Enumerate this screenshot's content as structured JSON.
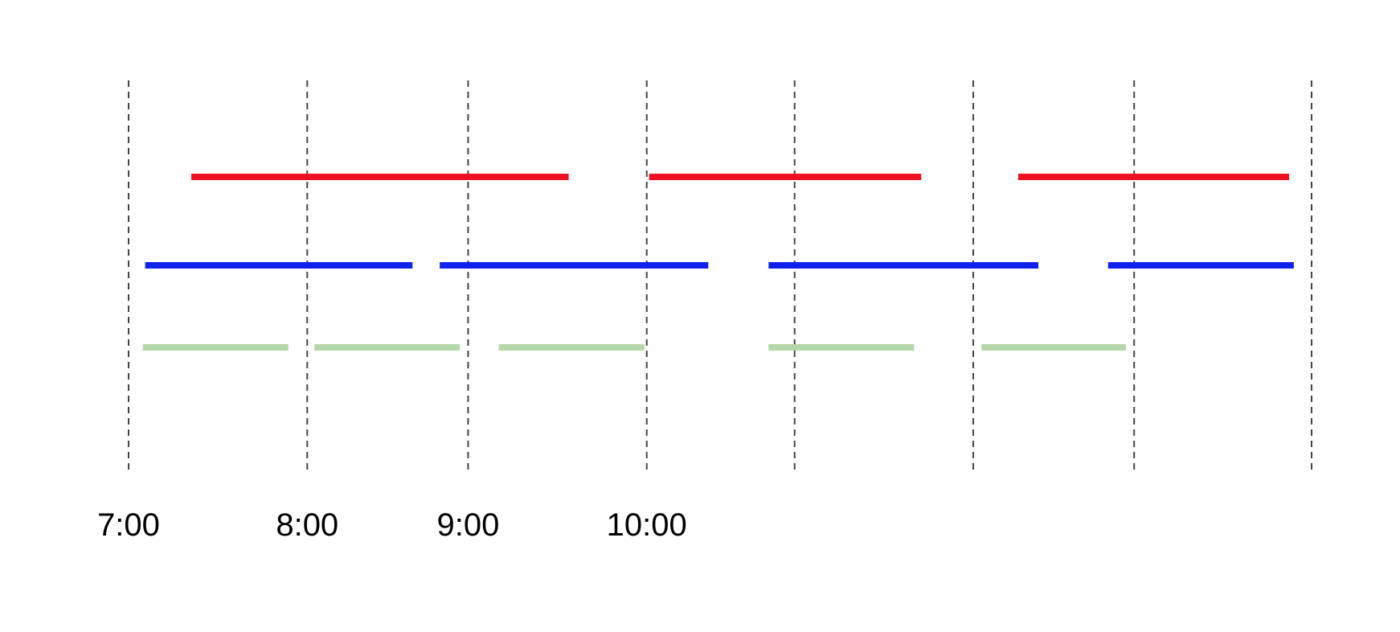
{
  "chart_data": {
    "type": "timeline",
    "title": "",
    "xlabel": "",
    "ylabel": "",
    "grid": true,
    "legend": "none",
    "xlim": [
      0,
      100
    ],
    "gridlines": [
      0,
      15.1,
      28.7,
      43.8,
      56.3,
      71.4,
      85,
      100
    ],
    "tick_labels": [
      {
        "value": 0,
        "label": "7:00"
      },
      {
        "value": 15.1,
        "label": "8:00"
      },
      {
        "value": 28.7,
        "label": "9:00"
      },
      {
        "value": 43.8,
        "label": "10:00"
      }
    ],
    "series": [
      {
        "color": "#ee1122",
        "segments": [
          [
            5.3,
            37.2
          ],
          [
            44.0,
            67.0
          ],
          [
            75.2,
            98.1
          ]
        ]
      },
      {
        "color": "#1122ee",
        "segments": [
          [
            1.4,
            24.0
          ],
          [
            26.3,
            49.0
          ],
          [
            54.1,
            76.9
          ],
          [
            82.8,
            98.5
          ]
        ]
      },
      {
        "color": "#b4d7a8",
        "segments": [
          [
            1.2,
            13.5
          ],
          [
            15.7,
            28.0
          ],
          [
            31.3,
            43.6
          ],
          [
            54.1,
            66.4
          ],
          [
            72.1,
            84.3
          ]
        ]
      }
    ]
  }
}
